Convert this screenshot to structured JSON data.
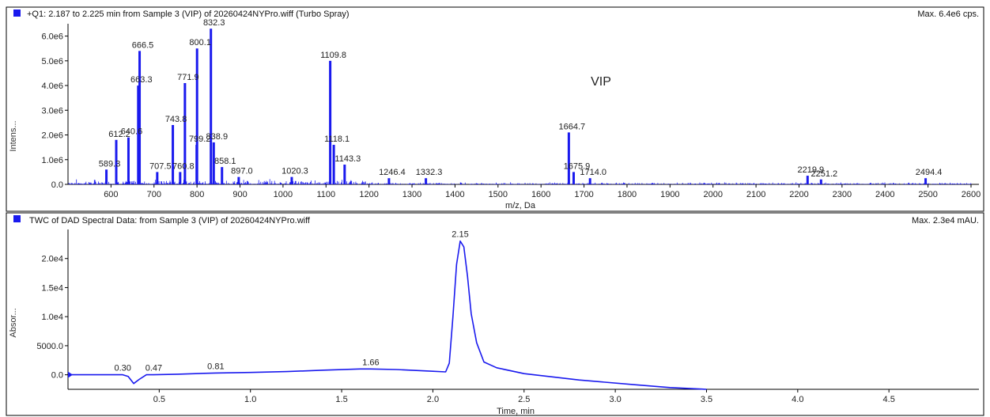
{
  "colors": {
    "trace": "#1a1aee",
    "axis": "#000000",
    "background": "#ffffff"
  },
  "chart_data": [
    {
      "type": "line",
      "header": "+Q1: 2.187 to 2.225 min from Sample 3 (VIP) of 20260424NYPro.wiff (Turbo Spray)",
      "max_label": "Max. 6.4e6 cps.",
      "annotation": "VIP",
      "xlabel": "m/z, Da",
      "ylabel": "Intens...",
      "xlim": [
        500,
        2600
      ],
      "ylim": [
        0,
        6500000.0
      ],
      "x_ticks": [
        600,
        700,
        800,
        900,
        1000,
        1100,
        1200,
        1300,
        1400,
        1500,
        1600,
        1700,
        1800,
        1900,
        2000,
        2100,
        2200,
        2300,
        2400,
        2500,
        2600
      ],
      "y_ticks": [
        {
          "v": 0,
          "label": "0.0"
        },
        {
          "v": 1000000,
          "label": "1.0e6"
        },
        {
          "v": 2000000,
          "label": "2.0e6"
        },
        {
          "v": 3000000,
          "label": "3.0e6"
        },
        {
          "v": 4000000,
          "label": "4.0e6"
        },
        {
          "v": 5000000,
          "label": "5.0e6"
        },
        {
          "v": 6000000,
          "label": "6.0e6"
        }
      ],
      "peaks": [
        {
          "x": 612.2,
          "y": 1800000,
          "label": "612.2"
        },
        {
          "x": 640.6,
          "y": 1900000,
          "label": "640.6"
        },
        {
          "x": 663.3,
          "y": 4000000,
          "label": "663.3"
        },
        {
          "x": 666.5,
          "y": 5400000,
          "label": "666.5"
        },
        {
          "x": 743.8,
          "y": 2400000,
          "label": "743.8"
        },
        {
          "x": 771.9,
          "y": 4100000,
          "label": "771.9"
        },
        {
          "x": 799.2,
          "y": 1600000,
          "label": "799.2"
        },
        {
          "x": 800.1,
          "y": 5500000,
          "label": "800.1"
        },
        {
          "x": 832.3,
          "y": 6300000,
          "label": "832.3"
        },
        {
          "x": 838.9,
          "y": 1700000,
          "label": "838.9"
        },
        {
          "x": 1109.8,
          "y": 5000000,
          "label": "1109.8"
        },
        {
          "x": 1118.1,
          "y": 1600000,
          "label": "1118.1"
        },
        {
          "x": 1664.7,
          "y": 2100000,
          "label": "1664.7"
        },
        {
          "x": 589.3,
          "y": 600000,
          "label": "589.3"
        },
        {
          "x": 707.5,
          "y": 500000,
          "label": "707.5"
        },
        {
          "x": 760.8,
          "y": 500000,
          "label": "760.8"
        },
        {
          "x": 858.1,
          "y": 700000,
          "label": "858.1"
        },
        {
          "x": 897.0,
          "y": 300000,
          "label": "897.0"
        },
        {
          "x": 1020.3,
          "y": 300000,
          "label": "1020.3"
        },
        {
          "x": 1143.3,
          "y": 800000,
          "label": "1143.3"
        },
        {
          "x": 1246.4,
          "y": 250000,
          "label": "1246.4"
        },
        {
          "x": 1332.3,
          "y": 250000,
          "label": "1332.3"
        },
        {
          "x": 1675.9,
          "y": 500000,
          "label": "1675.9"
        },
        {
          "x": 1714.0,
          "y": 250000,
          "label": "1714.0"
        },
        {
          "x": 2219.9,
          "y": 350000,
          "label": "2219.9"
        },
        {
          "x": 2251.2,
          "y": 200000,
          "label": "2251.2"
        },
        {
          "x": 2494.4,
          "y": 250000,
          "label": "2494.4"
        }
      ]
    },
    {
      "type": "line",
      "header": "TWC of DAD Spectral Data: from Sample 3 (VIP) of 20260424NYPro.wiff",
      "max_label": "Max. 2.3e4 mAU.",
      "xlabel": "Time, min",
      "ylabel": "Absor...",
      "xlim": [
        0,
        4.95
      ],
      "ylim": [
        -2500,
        25000
      ],
      "x_ticks": [
        {
          "v": 0.5,
          "label": "0.5"
        },
        {
          "v": 1.0,
          "label": "1.0"
        },
        {
          "v": 1.5,
          "label": "1.5"
        },
        {
          "v": 2.0,
          "label": "2.0"
        },
        {
          "v": 2.5,
          "label": "2.5"
        },
        {
          "v": 3.0,
          "label": "3.0"
        },
        {
          "v": 3.5,
          "label": "3.5"
        },
        {
          "v": 4.0,
          "label": "4.0"
        },
        {
          "v": 4.5,
          "label": "4.5"
        }
      ],
      "y_ticks": [
        {
          "v": 0,
          "label": "0.0"
        },
        {
          "v": 5000,
          "label": "5000.0"
        },
        {
          "v": 10000,
          "label": "1.0e4"
        },
        {
          "v": 15000,
          "label": "1.5e4"
        },
        {
          "v": 20000,
          "label": "2.0e4"
        }
      ],
      "peak_labels": [
        {
          "x": 0.3,
          "y": 0,
          "label": "0.30"
        },
        {
          "x": 0.47,
          "y": 0,
          "label": "0.47"
        },
        {
          "x": 0.81,
          "y": 300,
          "label": "0.81"
        },
        {
          "x": 1.66,
          "y": 1000,
          "label": "1.66"
        },
        {
          "x": 2.15,
          "y": 23000,
          "label": "2.15"
        }
      ],
      "trace": [
        [
          0,
          0
        ],
        [
          0.2,
          0
        ],
        [
          0.3,
          0
        ],
        [
          0.33,
          -300
        ],
        [
          0.36,
          -1500
        ],
        [
          0.39,
          -800
        ],
        [
          0.43,
          0
        ],
        [
          0.47,
          0
        ],
        [
          0.6,
          100
        ],
        [
          0.81,
          300
        ],
        [
          1.0,
          400
        ],
        [
          1.2,
          550
        ],
        [
          1.4,
          800
        ],
        [
          1.6,
          1000
        ],
        [
          1.66,
          1000
        ],
        [
          1.8,
          900
        ],
        [
          2.0,
          600
        ],
        [
          2.07,
          500
        ],
        [
          2.09,
          2000
        ],
        [
          2.11,
          10000
        ],
        [
          2.13,
          19000
        ],
        [
          2.15,
          23000
        ],
        [
          2.17,
          22000
        ],
        [
          2.19,
          17000
        ],
        [
          2.21,
          10500
        ],
        [
          2.24,
          5500
        ],
        [
          2.28,
          2200
        ],
        [
          2.35,
          1200
        ],
        [
          2.5,
          200
        ],
        [
          2.8,
          -900
        ],
        [
          3.1,
          -1700
        ],
        [
          3.3,
          -2200
        ],
        [
          3.5,
          -2500
        ]
      ]
    }
  ]
}
